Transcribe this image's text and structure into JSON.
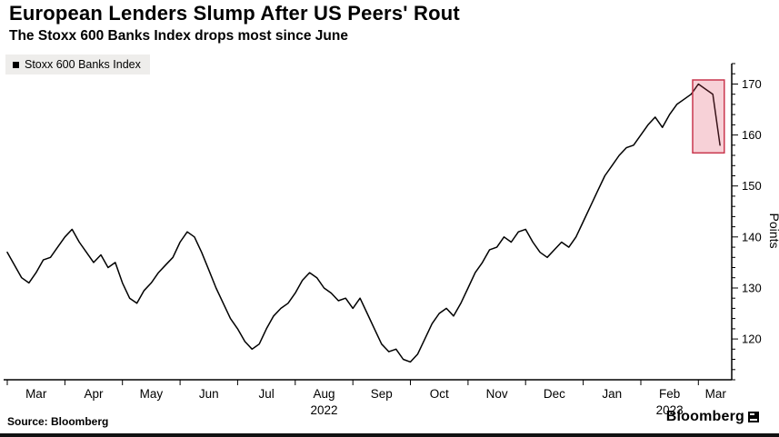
{
  "header": {
    "title": "European Lenders Slump After US Peers' Rout",
    "subtitle": "The Stoxx 600 Banks Index drops most since June"
  },
  "legend": {
    "label": "Stoxx 600 Banks Index",
    "marker_color": "#000000"
  },
  "footer": {
    "source": "Source: Bloomberg",
    "brand": "Bloomberg"
  },
  "chart_data": {
    "type": "line",
    "series_name": "Stoxx 600 Banks Index",
    "title": "European Lenders Slump After US Peers' Rout",
    "subtitle": "The Stoxx 600 Banks Index drops most since June",
    "ylabel": "Points",
    "y_ticks": [
      120,
      130,
      140,
      150,
      160,
      170
    ],
    "y_minor_step": 2,
    "ylim": [
      112,
      174
    ],
    "months": [
      "Mar",
      "Apr",
      "May",
      "Jun",
      "Jul",
      "Aug",
      "Sep",
      "Oct",
      "Nov",
      "Dec",
      "Jan",
      "Feb",
      "Mar"
    ],
    "year_labels": [
      {
        "text": "2022",
        "month_index": 5
      },
      {
        "text": "2023",
        "month_index": 11
      }
    ],
    "points_per_month": 8,
    "line_color": "#000000",
    "values": [
      137,
      134.5,
      132,
      131,
      133,
      135.5,
      136,
      138,
      140,
      141.5,
      139,
      137,
      135,
      136.5,
      134,
      135,
      131,
      128,
      127,
      129.5,
      131,
      133,
      134.5,
      136,
      139,
      141,
      140,
      137,
      133.5,
      130,
      127,
      124,
      122,
      119.5,
      118,
      119,
      122,
      124.5,
      126,
      127,
      129,
      131.5,
      133,
      132,
      130,
      129,
      127.5,
      128,
      126,
      128,
      125,
      122,
      119,
      117.5,
      118,
      116,
      115.5,
      117,
      120,
      123,
      125,
      126,
      124.5,
      127,
      130,
      133,
      135,
      137.5,
      138,
      140,
      139,
      141,
      141.5,
      139,
      137,
      136,
      137.5,
      139,
      138,
      140,
      143,
      146,
      149,
      152,
      154,
      156,
      157.5,
      158,
      160,
      162,
      163.5,
      161.5,
      164,
      166,
      167,
      168,
      170,
      169,
      168,
      158
    ],
    "highlight": {
      "x0_month": 11.9,
      "x1_month": 12.45,
      "y0": 156.5,
      "y1": 170.8,
      "fill": "rgba(225,70,95,0.25)",
      "stroke": "#c9374e"
    }
  }
}
